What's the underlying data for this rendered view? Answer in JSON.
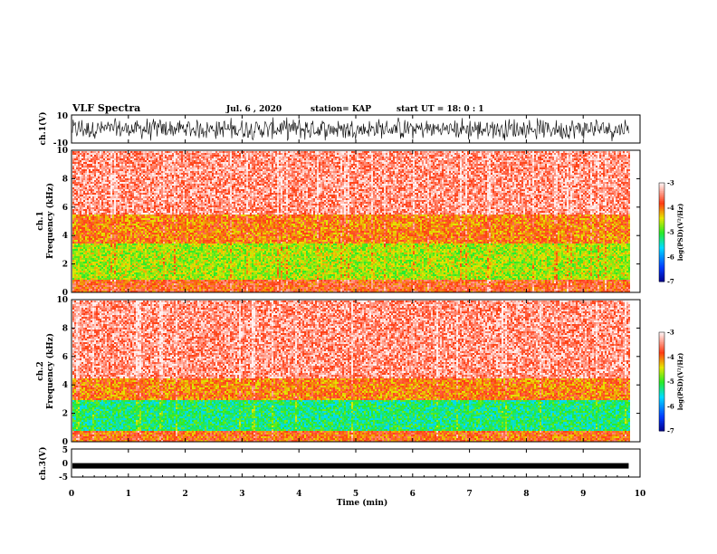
{
  "header": {
    "title": "VLF Spectra",
    "date": "Jul. 6 , 2020",
    "station": "station= KAP",
    "start_ut": "start UT = 18: 0 : 1"
  },
  "colors": {
    "background": "#ffffff",
    "spectrogram_base": "#ff2a1a",
    "spectrogram_band_yellow": "#e8e800",
    "spectrogram_band_green": "#44ee22",
    "waveform": "#000000"
  },
  "chart_data": [
    {
      "id": "ch1-waveform",
      "type": "line",
      "ylabel": "ch.1(V)",
      "xlim": [
        0,
        10
      ],
      "ylim": [
        -10,
        10
      ],
      "yticks": [
        "10",
        "-10"
      ],
      "description_values": {
        "amplitude_range": [
          -10,
          10
        ],
        "data_end_min": 9.8
      }
    },
    {
      "id": "ch1-spectrogram",
      "type": "heatmap",
      "ylabel": "Frequency (kHz)",
      "channel_label": "ch.1",
      "xlim": [
        0,
        10
      ],
      "ylim": [
        0,
        10
      ],
      "yticks": [
        "0",
        "2",
        "4",
        "6",
        "8",
        "10"
      ],
      "colorbar": {
        "label": "log(PSD)(V²/Hz)",
        "range": [
          -7,
          -3
        ],
        "ticks": [
          "-3",
          "-4",
          "-5",
          "-6",
          "-7"
        ]
      },
      "bands_khz": [
        {
          "from": 0,
          "to": 1,
          "level": -3.8
        },
        {
          "from": 1,
          "to": 3.5,
          "level": -4.6
        },
        {
          "from": 3.5,
          "to": 5.5,
          "level": -4.0
        },
        {
          "from": 5.5,
          "to": 10,
          "level": -3.4
        }
      ],
      "data_end_min": 9.8
    },
    {
      "id": "ch2-spectrogram",
      "type": "heatmap",
      "ylabel": "Frequency (kHz)",
      "channel_label": "ch.2",
      "xlim": [
        0,
        10
      ],
      "ylim": [
        0,
        10
      ],
      "yticks": [
        "0",
        "2",
        "4",
        "6",
        "8",
        "10"
      ],
      "colorbar": {
        "label": "log(PSD)(V²/Hz)",
        "range": [
          -7,
          -3
        ],
        "ticks": [
          "-3",
          "-4",
          "-5",
          "-6",
          "-7"
        ]
      },
      "bands_khz": [
        {
          "from": 0,
          "to": 0.8,
          "level": -3.9
        },
        {
          "from": 0.8,
          "to": 3,
          "level": -5.2
        },
        {
          "from": 3,
          "to": 4.5,
          "level": -4.0
        },
        {
          "from": 4.5,
          "to": 10,
          "level": -3.4
        }
      ],
      "data_end_min": 9.8
    },
    {
      "id": "ch3-waveform",
      "type": "line",
      "ylabel": "ch.3(V)",
      "xlim": [
        0,
        10
      ],
      "ylim": [
        -5,
        5
      ],
      "yticks": [
        "5",
        "0",
        "-5"
      ],
      "description_values": {
        "level": -1,
        "data_end_min": 9.8
      }
    }
  ],
  "x_axis": {
    "label": "Time (min)",
    "ticks": [
      "0",
      "1",
      "2",
      "3",
      "4",
      "5",
      "6",
      "7",
      "8",
      "9",
      "10"
    ]
  }
}
